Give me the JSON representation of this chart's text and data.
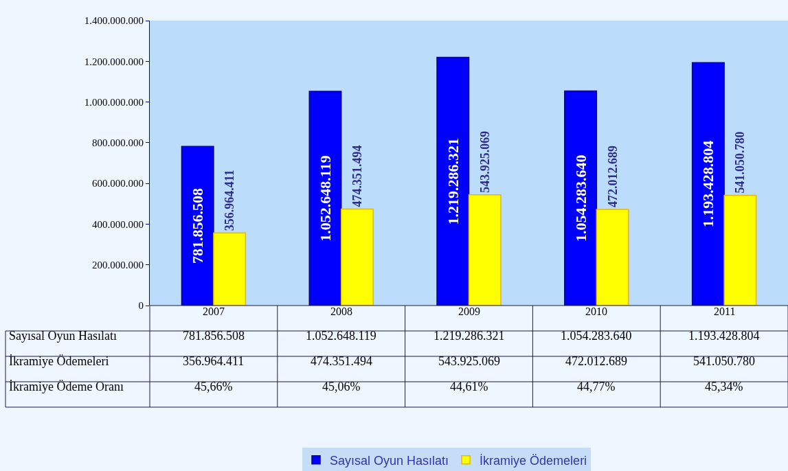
{
  "chart_data": {
    "type": "bar",
    "categories": [
      "2007",
      "2008",
      "2009",
      "2010",
      "2011"
    ],
    "series": [
      {
        "name": "Sayısal Oyun Hasılatı",
        "color": "#0000ff",
        "values": [
          781856508,
          1052648119,
          1219286321,
          1054283640,
          1193428804
        ],
        "value_labels": [
          "781.856.508",
          "1.052.648.119",
          "1.219.286.321",
          "1.054.283.640",
          "1.193.428.804"
        ]
      },
      {
        "name": "İkramiye Ödemeleri",
        "color": "#ffff00",
        "values": [
          356964411,
          474351494,
          543925069,
          472012689,
          541050780
        ],
        "value_labels": [
          "356.964.411",
          "474.351.494",
          "543.925.069",
          "472.012.689",
          "541.050.780"
        ]
      }
    ],
    "ylim": [
      0,
      1400000000
    ],
    "yticks": [
      0,
      {
        "value": 200000000,
        "label": "200.000.000"
      },
      {
        "value": 400000000,
        "label": "400.000.000"
      },
      {
        "value": 600000000,
        "label": "600.000.000"
      },
      {
        "value": 800000000,
        "label": "800.000.000"
      },
      {
        "value": 1000000000,
        "label": "1.000.000.000"
      },
      {
        "value": 1200000000,
        "label": "1.200.000.000"
      },
      {
        "value": 1400000000,
        "label": "1.400.000.000"
      }
    ],
    "annotations": [
      "İkramiye Ödeme Oranı",
      "45,66%",
      "45,06%",
      "44,61%",
      "44,77%",
      "45,34%"
    ],
    "grid": false,
    "legend": "bottom"
  }
}
